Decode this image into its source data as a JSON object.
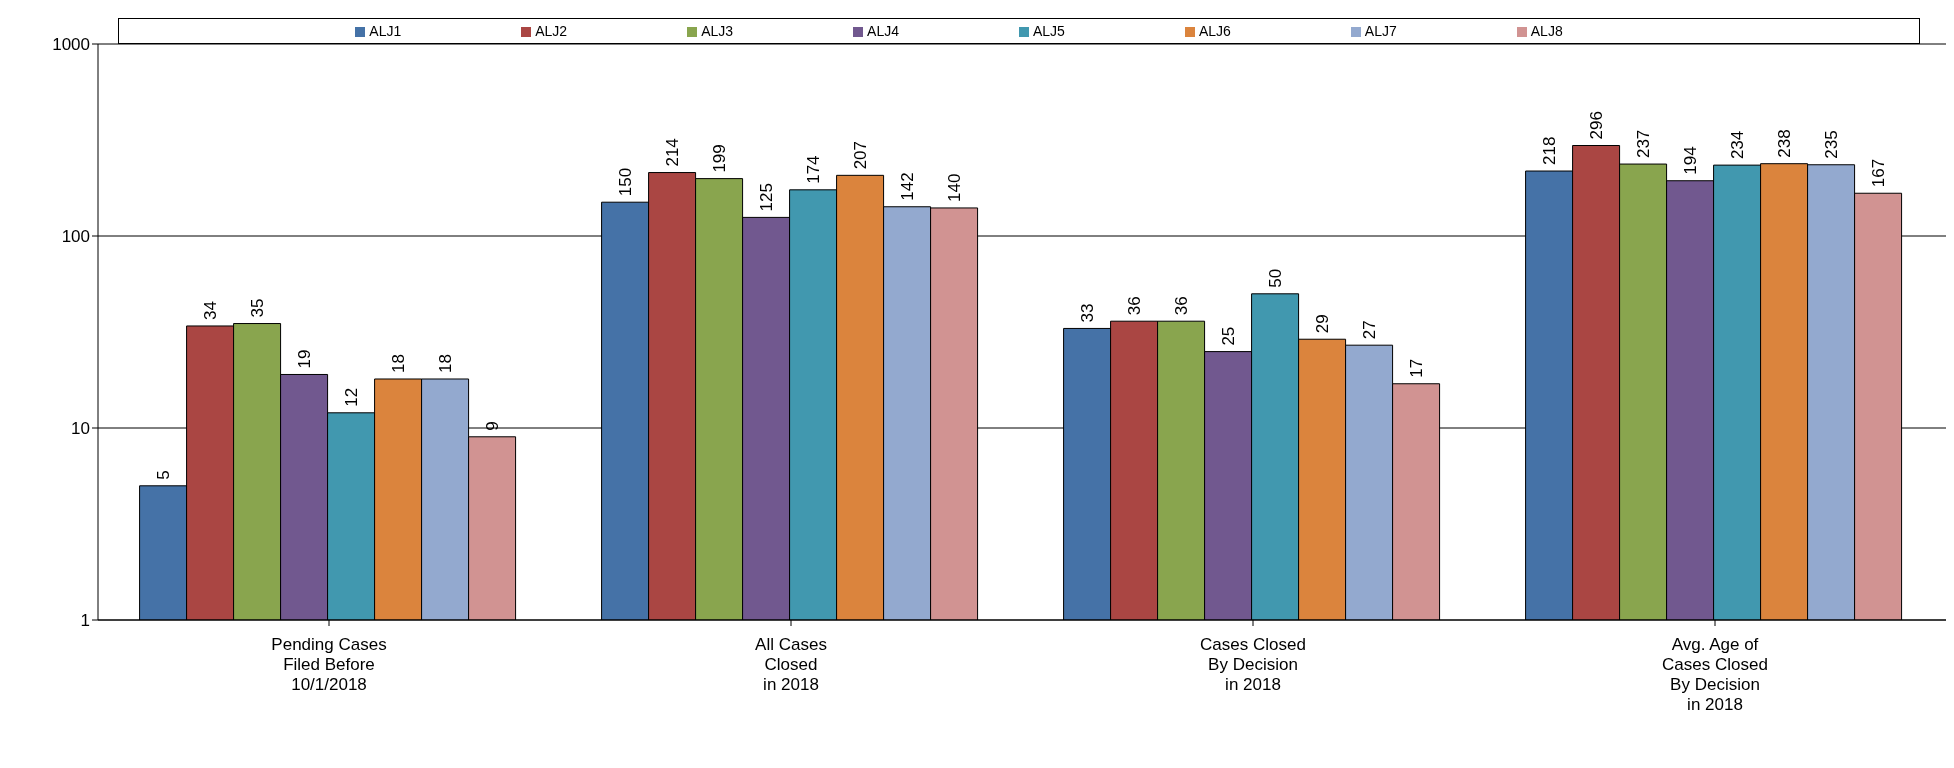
{
  "chart_data": {
    "type": "bar",
    "categories": [
      "Pending Cases\nFiled Before\n10/1/2018",
      "All Cases\nClosed\nin 2018",
      "Cases Closed\nBy Decision\nin 2018",
      "Avg. Age of\nCases Closed\nBy Decision\nin 2018"
    ],
    "series": [
      {
        "name": "ALJ1",
        "color": "#4572a7",
        "values": [
          5,
          150,
          33,
          218
        ]
      },
      {
        "name": "ALJ2",
        "color": "#aa4643",
        "values": [
          34,
          214,
          36,
          296
        ]
      },
      {
        "name": "ALJ3",
        "color": "#89a54e",
        "values": [
          35,
          199,
          36,
          237
        ]
      },
      {
        "name": "ALJ4",
        "color": "#71588f",
        "values": [
          19,
          125,
          25,
          194
        ]
      },
      {
        "name": "ALJ5",
        "color": "#4198af",
        "values": [
          12,
          174,
          50,
          234
        ]
      },
      {
        "name": "ALJ6",
        "color": "#db843d",
        "values": [
          18,
          207,
          29,
          238
        ]
      },
      {
        "name": "ALJ7",
        "color": "#93a9cf",
        "values": [
          18,
          142,
          27,
          235
        ]
      },
      {
        "name": "ALJ8",
        "color": "#d19392",
        "values": [
          9,
          140,
          17,
          167
        ]
      }
    ],
    "log": true,
    "ylim": [
      1,
      1000
    ],
    "yticks": [
      1,
      10,
      100,
      1000
    ],
    "grid": "y",
    "legend": "top",
    "data_labels": true
  }
}
